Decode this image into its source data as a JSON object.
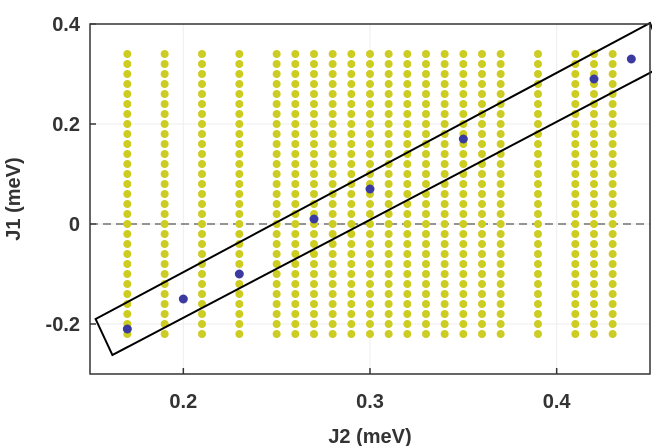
{
  "chart_data": {
    "type": "scatter",
    "xlabel": "J2 (meV)",
    "ylabel": "J1 (meV)",
    "xlim": [
      0.15,
      0.45
    ],
    "ylim": [
      -0.3,
      0.4
    ],
    "x_ticks": [
      0.2,
      0.3,
      0.4
    ],
    "y_ticks": [
      -0.2,
      0,
      0.2,
      0.4
    ],
    "x_tick_labels": [
      "0.2",
      "0.3",
      "0.4"
    ],
    "y_tick_labels": [
      "-0.2",
      "0",
      "0.2",
      "0.4"
    ],
    "grid": true,
    "zero_line": 0,
    "series": [
      {
        "color": "#cccc22",
        "x": [
          0.17,
          0.19,
          0.21,
          0.23,
          0.25,
          0.26,
          0.27,
          0.28,
          0.29,
          0.3,
          0.31,
          0.32,
          0.33,
          0.34,
          0.35,
          0.36,
          0.37,
          0.39,
          0.41,
          0.42,
          0.43
        ],
        "y_min": -0.22,
        "y_max": 0.33,
        "y_step": 0.02
      },
      {
        "color": "#3a3aa0",
        "x": [
          0.17,
          0.2,
          0.23,
          0.27,
          0.3,
          0.35,
          0.42,
          0.44
        ],
        "y": [
          -0.21,
          -0.15,
          -0.1,
          0.01,
          0.07,
          0.17,
          0.29,
          0.33
        ]
      }
    ],
    "annotations": [
      {
        "type": "rectangle",
        "color": "#000000",
        "corners": [
          [
            0.153,
            -0.19
          ],
          [
            0.162,
            -0.262
          ],
          [
            0.459,
            0.32
          ],
          [
            0.45,
            0.402
          ]
        ]
      }
    ]
  }
}
